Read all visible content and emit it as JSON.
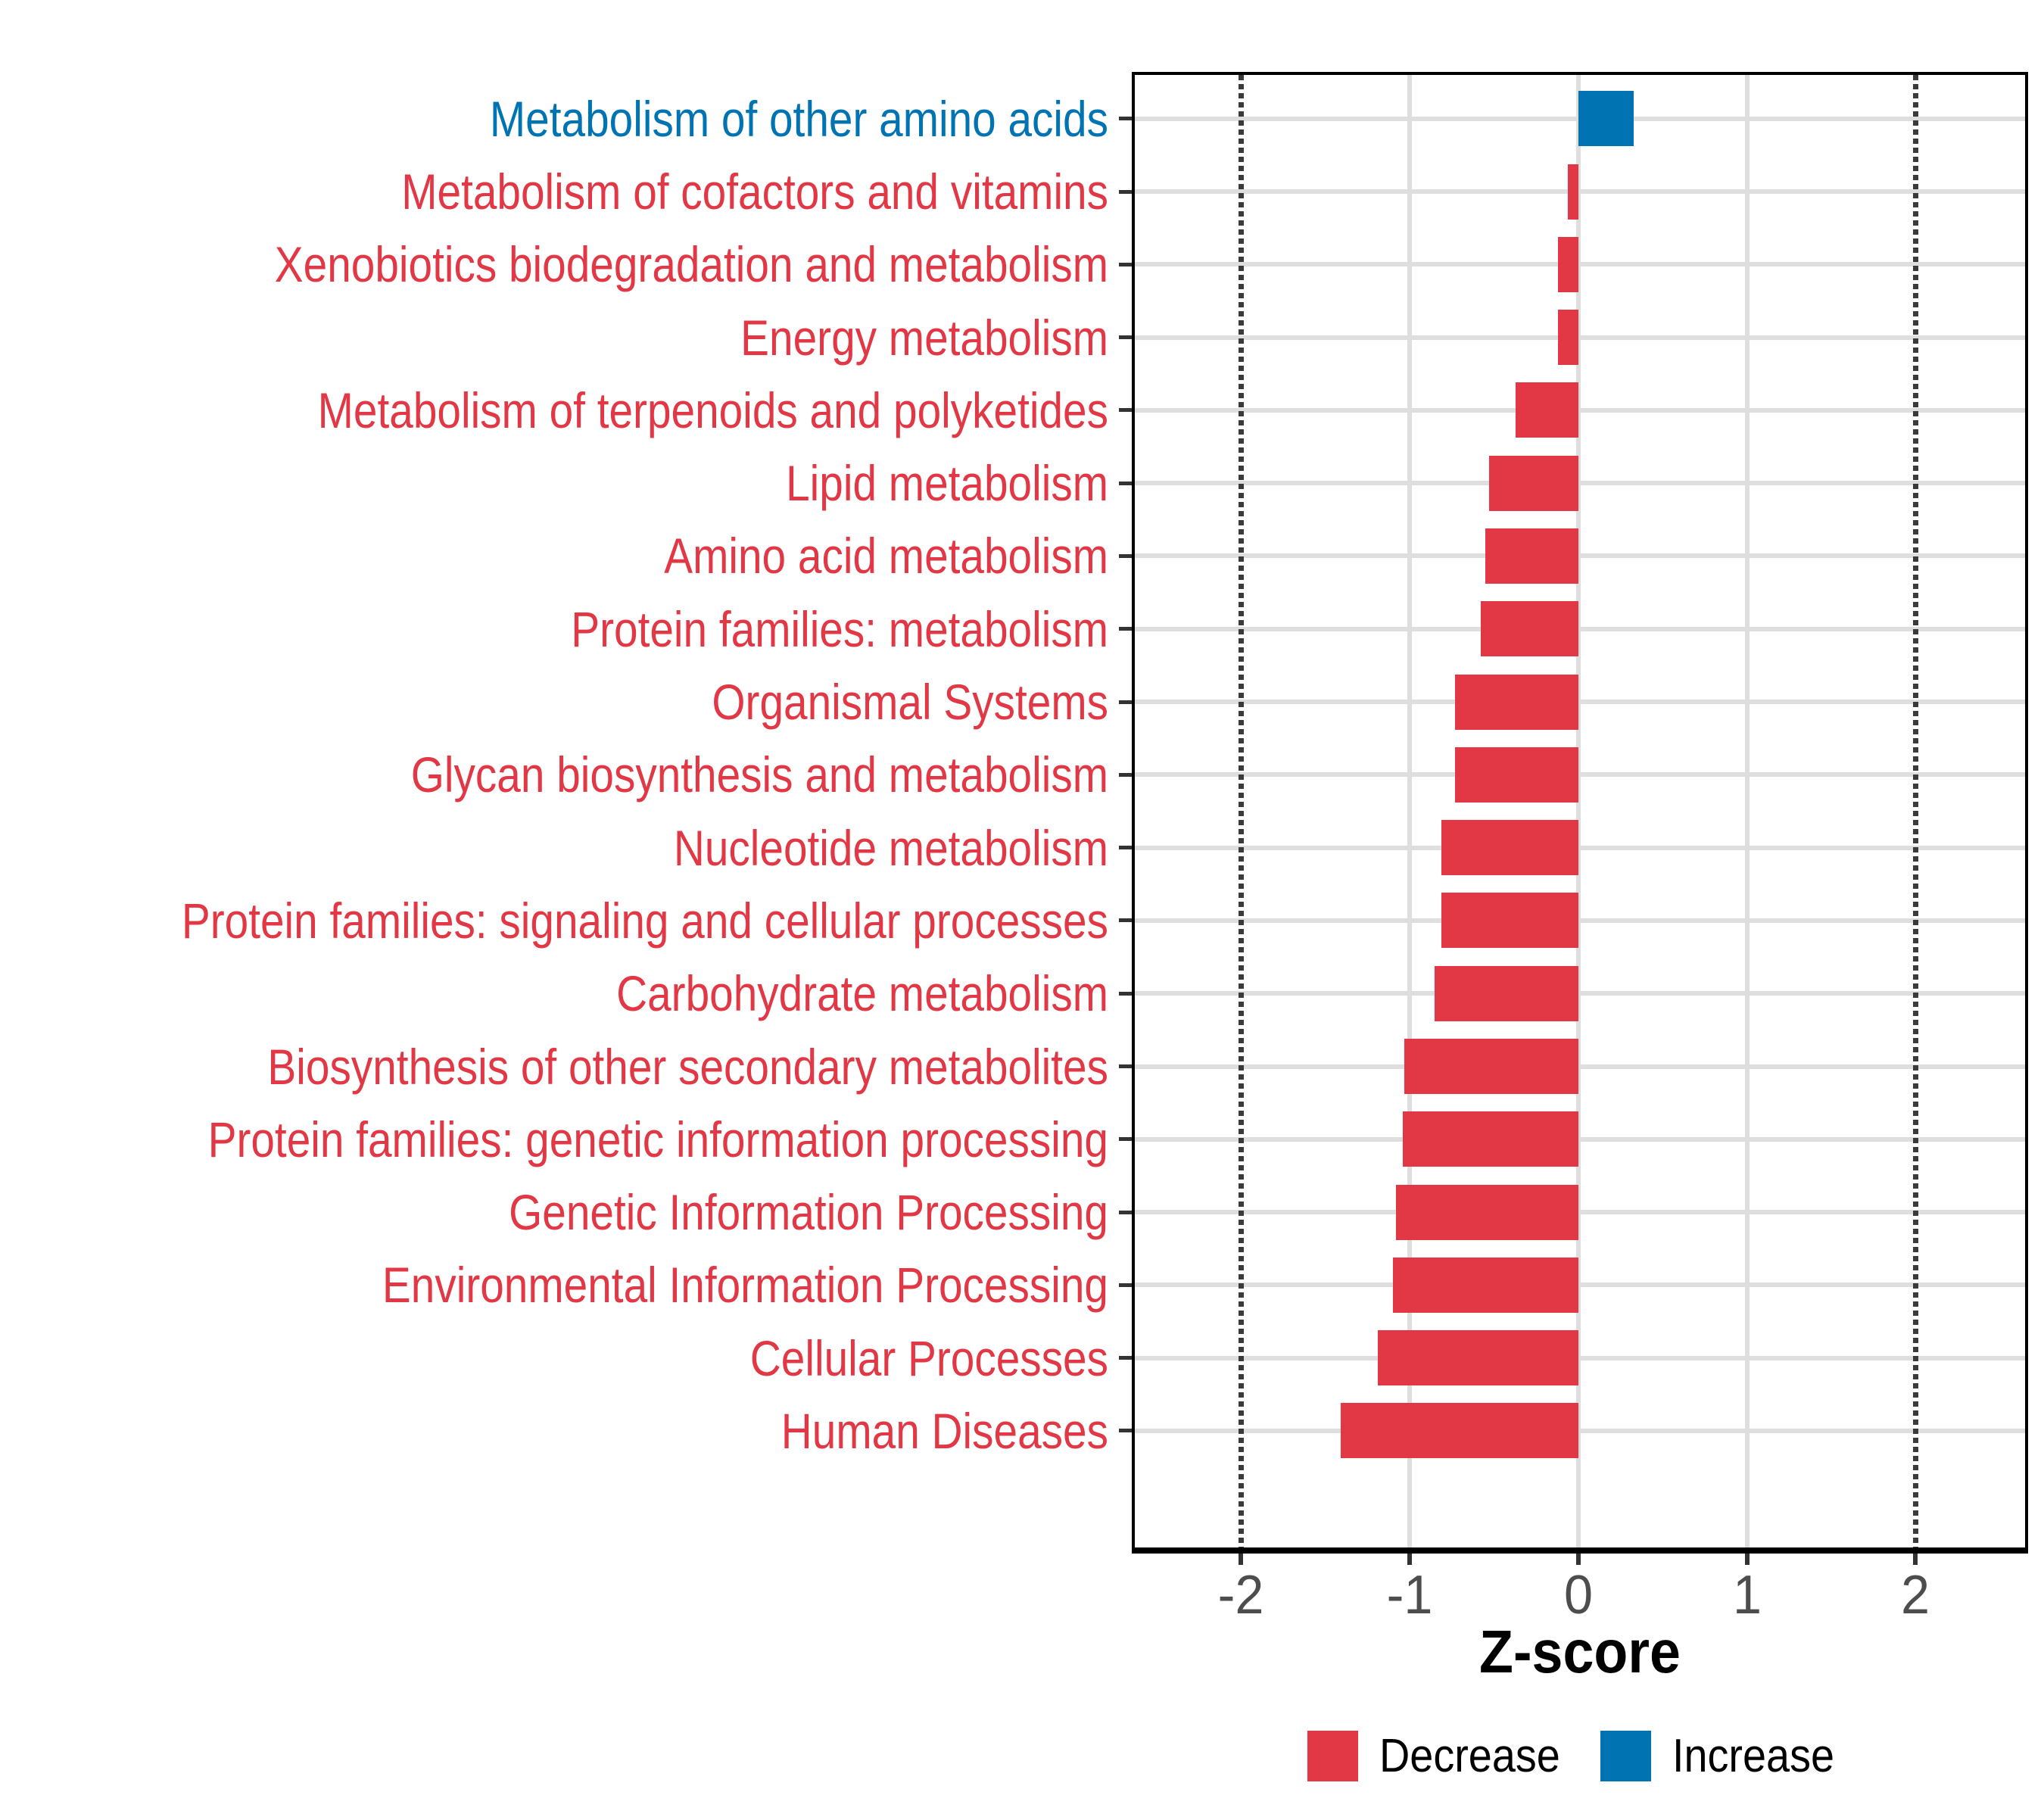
{
  "figure": {
    "title": "",
    "x_axis_title": "Z-score"
  },
  "colors": {
    "decrease": "#E23845",
    "increase": "#0073B3",
    "grid": "#DEDEDE",
    "dashed_line": "#3A3A3A",
    "axis_tick_label": "#4D4D4D",
    "axis_line": "#000000",
    "legend_text": "#000000",
    "background": "#FFFFFF"
  },
  "chart_data": {
    "type": "bar",
    "orientation": "horizontal",
    "title": "",
    "xlabel": "Z-score",
    "ylabel": "",
    "xlim": [
      -2.63,
      2.65
    ],
    "xticks": [
      -2,
      -1,
      0,
      1,
      2
    ],
    "xtick_labels": [
      "-2",
      "-1",
      "0",
      "1",
      "2"
    ],
    "dashed_reference_lines_x": [
      -2,
      2
    ],
    "grid": "on",
    "legend_position": "bottom",
    "categories": [
      "Metabolism of other amino acids",
      "Metabolism of cofactors and vitamins",
      "Xenobiotics biodegradation and metabolism",
      "Energy metabolism",
      "Metabolism of terpenoids and polyketides",
      "Lipid metabolism",
      "Amino acid metabolism",
      "Protein families: metabolism",
      "Organismal Systems",
      "Glycan biosynthesis and metabolism",
      "Nucleotide metabolism",
      "Protein families: signaling and cellular processes",
      "Carbohydrate metabolism",
      "Biosynthesis of other secondary metabolites",
      "Protein families: genetic information processing",
      "Genetic Information Processing",
      "Environmental Information Processing",
      "Cellular Processes",
      "Human Diseases"
    ],
    "values": [
      0.33,
      -0.06,
      -0.12,
      -0.12,
      -0.37,
      -0.53,
      -0.55,
      -0.58,
      -0.73,
      -0.73,
      -0.81,
      -0.81,
      -0.85,
      -1.03,
      -1.04,
      -1.08,
      -1.1,
      -1.19,
      -1.41
    ],
    "directions": [
      "increase",
      "decrease",
      "decrease",
      "decrease",
      "decrease",
      "decrease",
      "decrease",
      "decrease",
      "decrease",
      "decrease",
      "decrease",
      "decrease",
      "decrease",
      "decrease",
      "decrease",
      "decrease",
      "decrease",
      "decrease",
      "decrease"
    ],
    "series_name": "Z-score",
    "legend": [
      {
        "label": "Decrease",
        "color": "#E23845"
      },
      {
        "label": "Increase",
        "color": "#0073B3"
      }
    ]
  }
}
